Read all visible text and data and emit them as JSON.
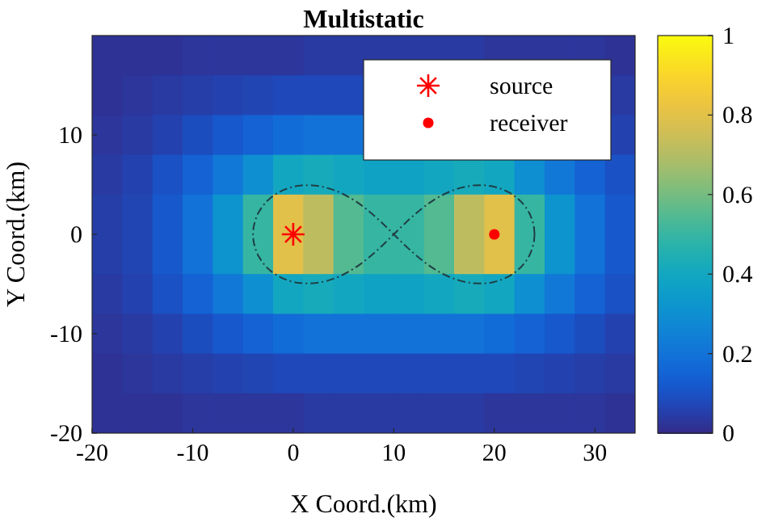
{
  "chart_data": {
    "type": "heatmap",
    "title": "Multistatic",
    "xlabel": "X Coord.(km)",
    "ylabel": "Y Coord.(km)",
    "xlim": [
      -20,
      34
    ],
    "ylim": [
      -20,
      20
    ],
    "xticks": [
      -20,
      -10,
      0,
      10,
      20,
      30
    ],
    "yticks": [
      -20,
      -10,
      0,
      10
    ],
    "clim": [
      0,
      1
    ],
    "cticks": [
      0,
      0.2,
      0.4,
      0.6,
      0.8,
      1
    ],
    "x": [
      -18.5,
      -15.5,
      -12.5,
      -9.5,
      -6.5,
      -3.5,
      -0.5,
      2.5,
      5.5,
      8.5,
      11.5,
      14.5,
      17.5,
      20.5,
      23.5,
      26.5,
      29.5,
      32.5
    ],
    "y": [
      18,
      14,
      10,
      6,
      2,
      -2,
      -6,
      -10,
      -14,
      -18
    ],
    "cells": [
      [
        0.02,
        0.02,
        0.02,
        0.03,
        0.03,
        0.03,
        0.03,
        0.04,
        0.04,
        0.04,
        0.04,
        0.04,
        0.04,
        0.03,
        0.03,
        0.03,
        0.03,
        0.02
      ],
      [
        0.02,
        0.03,
        0.04,
        0.05,
        0.06,
        0.07,
        0.08,
        0.08,
        0.08,
        null,
        null,
        null,
        null,
        null,
        null,
        null,
        null,
        0.04
      ],
      [
        0.03,
        0.04,
        0.06,
        0.09,
        0.12,
        0.15,
        0.18,
        0.2,
        0.2,
        null,
        null,
        null,
        null,
        null,
        null,
        null,
        null,
        0.06
      ],
      [
        0.04,
        0.06,
        0.1,
        0.15,
        0.22,
        0.3,
        0.4,
        0.42,
        0.4,
        0.38,
        0.38,
        0.4,
        0.42,
        0.4,
        0.3,
        0.22,
        0.15,
        0.1
      ],
      [
        0.05,
        0.07,
        0.12,
        0.2,
        0.32,
        0.5,
        0.8,
        0.72,
        0.55,
        0.5,
        0.5,
        0.55,
        0.72,
        0.8,
        0.5,
        0.32,
        0.2,
        0.12
      ],
      [
        0.05,
        0.07,
        0.12,
        0.2,
        0.32,
        0.5,
        0.8,
        0.72,
        0.55,
        0.5,
        0.5,
        0.55,
        0.72,
        0.8,
        0.5,
        0.32,
        0.2,
        0.12
      ],
      [
        0.04,
        0.06,
        0.1,
        0.15,
        0.22,
        0.3,
        0.4,
        0.42,
        0.4,
        0.38,
        0.38,
        0.4,
        0.42,
        0.4,
        0.3,
        0.22,
        0.15,
        0.1
      ],
      [
        0.03,
        0.04,
        0.06,
        0.09,
        0.12,
        0.15,
        0.18,
        0.2,
        0.2,
        0.2,
        0.2,
        0.2,
        0.2,
        0.18,
        0.15,
        0.12,
        0.09,
        0.06
      ],
      [
        0.02,
        0.03,
        0.04,
        0.05,
        0.06,
        0.07,
        0.08,
        0.08,
        0.08,
        0.08,
        0.08,
        0.08,
        0.08,
        0.08,
        0.07,
        0.06,
        0.05,
        0.04
      ],
      [
        0.02,
        0.02,
        0.02,
        0.03,
        0.03,
        0.03,
        0.03,
        0.04,
        0.04,
        0.04,
        0.04,
        0.04,
        0.04,
        0.03,
        0.03,
        0.03,
        0.03,
        0.02
      ]
    ],
    "series": [
      {
        "type": "scatter",
        "name": "source",
        "color": "#ff0000",
        "marker": "cross",
        "x": [
          0
        ],
        "values": [
          0
        ]
      },
      {
        "type": "scatter",
        "name": "receiver",
        "color": "#ff0000",
        "marker": "circle",
        "x": [
          20
        ],
        "values": [
          0
        ]
      }
    ],
    "legend": "top right"
  }
}
